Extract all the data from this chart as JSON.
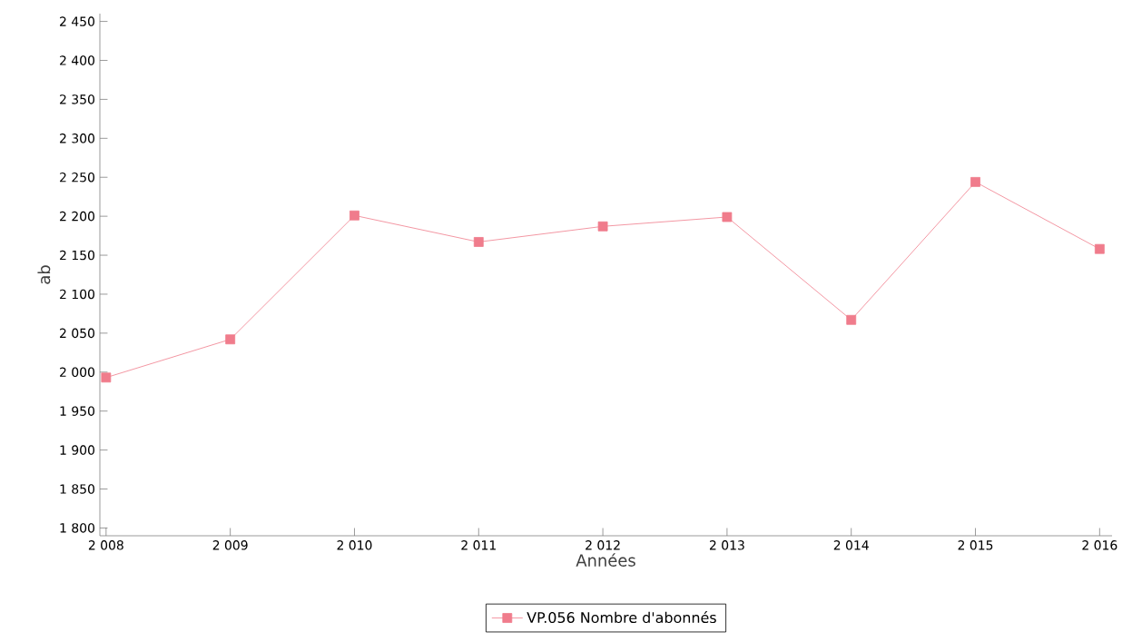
{
  "chart_data": {
    "type": "line",
    "xlabel": "Années",
    "ylabel": "ab",
    "x": [
      2008,
      2009,
      2010,
      2011,
      2012,
      2013,
      2014,
      2015,
      2016
    ],
    "series": [
      {
        "name": "VP.056 Nombre d'abonnés",
        "color": "#f07c8c",
        "values": [
          1993,
          2042,
          2201,
          2167,
          2187,
          2199,
          2067,
          2244,
          2158
        ]
      }
    ],
    "xlim": [
      2007.95,
      2016.1
    ],
    "ylim": [
      1790,
      2460
    ],
    "xticks": [
      {
        "value": 2008,
        "label": "2 008"
      },
      {
        "value": 2009,
        "label": "2 009"
      },
      {
        "value": 2010,
        "label": "2 010"
      },
      {
        "value": 2011,
        "label": "2 011"
      },
      {
        "value": 2012,
        "label": "2 012"
      },
      {
        "value": 2013,
        "label": "2 013"
      },
      {
        "value": 2014,
        "label": "2 014"
      },
      {
        "value": 2015,
        "label": "2 015"
      },
      {
        "value": 2016,
        "label": "2 016"
      }
    ],
    "yticks": [
      {
        "value": 1800,
        "label": "1 800"
      },
      {
        "value": 1850,
        "label": "1 850"
      },
      {
        "value": 1900,
        "label": "1 900"
      },
      {
        "value": 1950,
        "label": "1 950"
      },
      {
        "value": 2000,
        "label": "2 000"
      },
      {
        "value": 2050,
        "label": "2 050"
      },
      {
        "value": 2100,
        "label": "2 100"
      },
      {
        "value": 2150,
        "label": "2 150"
      },
      {
        "value": 2200,
        "label": "2 200"
      },
      {
        "value": 2250,
        "label": "2 250"
      },
      {
        "value": 2300,
        "label": "2 300"
      },
      {
        "value": 2350,
        "label": "2 350"
      },
      {
        "value": 2400,
        "label": "2 400"
      },
      {
        "value": 2450,
        "label": "2 450"
      }
    ],
    "grid": false,
    "legend": "bottom",
    "marker": "square",
    "line_style": "solid"
  }
}
